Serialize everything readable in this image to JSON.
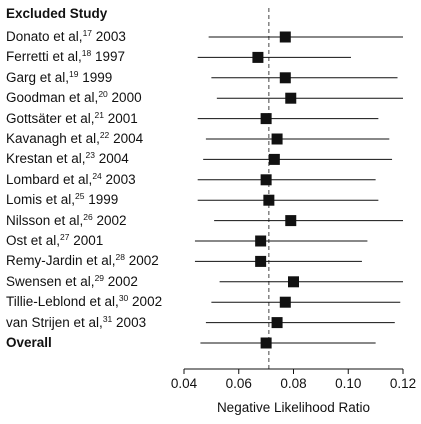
{
  "chart_data": {
    "type": "forest",
    "header": "Excluded Study",
    "xlabel": "Negative Likelihood Ratio",
    "xlim": [
      0.04,
      0.12
    ],
    "xticks": [
      "0.04",
      "0.06",
      "0.08",
      "0.10",
      "0.12"
    ],
    "reference_line": 0.071,
    "studies": [
      {
        "author": "Donato et al,",
        "ref": "17",
        "year": "2003",
        "estimate": 0.077,
        "ci": [
          0.049,
          0.12
        ]
      },
      {
        "author": "Ferretti et al,",
        "ref": "18",
        "year": "1997",
        "estimate": 0.067,
        "ci": [
          0.045,
          0.101
        ]
      },
      {
        "author": "Garg et al,",
        "ref": "19",
        "year": "1999",
        "estimate": 0.077,
        "ci": [
          0.05,
          0.118
        ]
      },
      {
        "author": "Goodman et al,",
        "ref": "20",
        "year": "2000",
        "estimate": 0.079,
        "ci": [
          0.052,
          0.12
        ]
      },
      {
        "author": "Gottsäter et al,",
        "ref": "21",
        "year": "2001",
        "estimate": 0.07,
        "ci": [
          0.045,
          0.111
        ]
      },
      {
        "author": "Kavanagh et al,",
        "ref": "22",
        "year": "2004",
        "estimate": 0.074,
        "ci": [
          0.048,
          0.115
        ]
      },
      {
        "author": "Krestan et al,",
        "ref": "23",
        "year": "2004",
        "estimate": 0.073,
        "ci": [
          0.047,
          0.116
        ]
      },
      {
        "author": "Lombard et al,",
        "ref": "24",
        "year": "2003",
        "estimate": 0.07,
        "ci": [
          0.045,
          0.11
        ]
      },
      {
        "author": "Lomis et al,",
        "ref": "25",
        "year": "1999",
        "estimate": 0.071,
        "ci": [
          0.045,
          0.111
        ]
      },
      {
        "author": "Nilsson et al,",
        "ref": "26",
        "year": "2002",
        "estimate": 0.079,
        "ci": [
          0.051,
          0.12
        ]
      },
      {
        "author": "Ost et al,",
        "ref": "27",
        "year": "2001",
        "estimate": 0.068,
        "ci": [
          0.044,
          0.107
        ]
      },
      {
        "author": "Remy-Jardin et al,",
        "ref": "28",
        "year": "2002",
        "estimate": 0.068,
        "ci": [
          0.044,
          0.105
        ]
      },
      {
        "author": "Swensen et al,",
        "ref": "29",
        "year": "2002",
        "estimate": 0.08,
        "ci": [
          0.053,
          0.12
        ]
      },
      {
        "author": "Tillie-Leblond et al,",
        "ref": "30",
        "year": "2002",
        "estimate": 0.077,
        "ci": [
          0.05,
          0.119
        ]
      },
      {
        "author": "van Strijen et al,",
        "ref": "31",
        "year": "2003",
        "estimate": 0.074,
        "ci": [
          0.048,
          0.117
        ]
      }
    ],
    "overall": {
      "label": "Overall",
      "estimate": 0.07,
      "ci": [
        0.046,
        0.11
      ]
    }
  }
}
